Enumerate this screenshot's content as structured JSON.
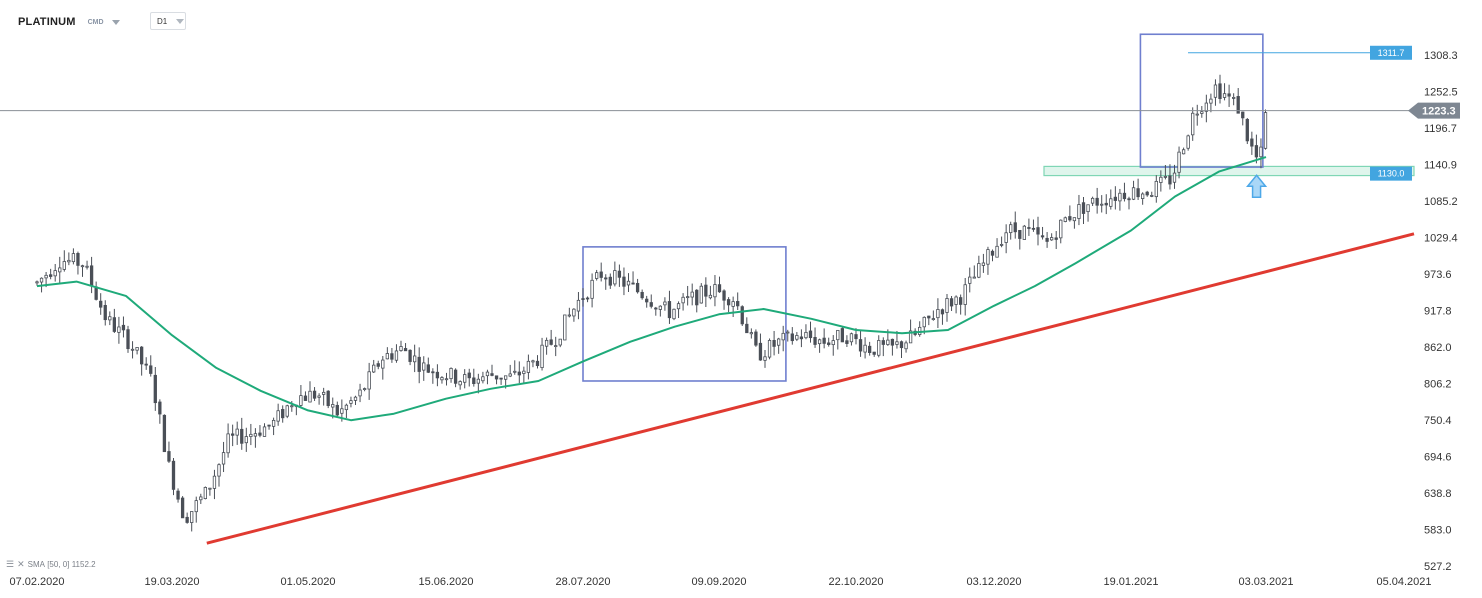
{
  "header": {
    "symbol": "PLATINUM",
    "symbol_type": "CMD",
    "timeframe": "D1"
  },
  "legend": {
    "menu_icon": "menu-icon",
    "close_icon": "close-icon",
    "indicator_name": "SMA",
    "indicator_params": "[50, 0]",
    "indicator_value": "1152.2"
  },
  "chart_data": {
    "type": "candlestick",
    "title": "PLATINUM",
    "timeframe": "D1",
    "y_ticks": [
      "1308.3",
      "1252.5",
      "1196.7",
      "1140.9",
      "1085.2",
      "1029.4",
      "973.6",
      "917.8",
      "862.0",
      "806.2",
      "750.4",
      "694.6",
      "638.8",
      "583.0",
      "527.2"
    ],
    "x_ticks": [
      "07.02.2020",
      "19.03.2020",
      "01.05.2020",
      "15.06.2020",
      "28.07.2020",
      "09.09.2020",
      "22.10.2020",
      "03.12.2020",
      "19.01.2021",
      "03.03.2021",
      "05.04.2021"
    ],
    "ylim": [
      527.2,
      1308.3
    ],
    "current_price": "1223.3",
    "price_labels": [
      {
        "text": "1311.7",
        "value": 1311.7,
        "color": "#42a5e0"
      },
      {
        "text": "1130.0",
        "value": 1130.0,
        "color": "#42a5e0"
      }
    ],
    "candle_colors": {
      "up": "#ffffff",
      "down": "#4a4f57",
      "outline": "#4a4f57"
    },
    "sma": {
      "name": "SMA [50, 0]",
      "color": "#1faa7a",
      "last_value": 1152.2,
      "points": [
        [
          "07.02.2020",
          955
        ],
        [
          "19.02.2020",
          962
        ],
        [
          "05.03.2020",
          940
        ],
        [
          "19.03.2020",
          880
        ],
        [
          "02.04.2020",
          830
        ],
        [
          "16.04.2020",
          795
        ],
        [
          "01.05.2020",
          765
        ],
        [
          "15.05.2020",
          750
        ],
        [
          "29.05.2020",
          760
        ],
        [
          "15.06.2020",
          783
        ],
        [
          "29.06.2020",
          798
        ],
        [
          "14.07.2020",
          810
        ],
        [
          "28.07.2020",
          840
        ],
        [
          "12.08.2020",
          870
        ],
        [
          "26.08.2020",
          893
        ],
        [
          "09.09.2020",
          912
        ],
        [
          "23.09.2020",
          920
        ],
        [
          "08.10.2020",
          905
        ],
        [
          "22.10.2020",
          888
        ],
        [
          "05.11.2020",
          883
        ],
        [
          "19.11.2020",
          888
        ],
        [
          "03.12.2020",
          925
        ],
        [
          "17.12.2020",
          955
        ],
        [
          "31.12.2020",
          990
        ],
        [
          "19.01.2021",
          1040
        ],
        [
          "02.02.2021",
          1092
        ],
        [
          "16.02.2021",
          1130
        ],
        [
          "03.03.2021",
          1152.2
        ]
      ]
    },
    "support_trendline": {
      "color": "#e03a31",
      "from": [
        "30.03.2020",
        562
      ],
      "to": [
        "05.04.2021",
        1035
      ]
    },
    "support_zone": {
      "low": 1124,
      "high": 1138,
      "color": "#7fd6b5"
    },
    "rectangles": [
      {
        "from": "28.07.2020",
        "to": "30.09.2020",
        "low": 810,
        "high": 1015,
        "color": "#6f7fcf"
      },
      {
        "from": "22.01.2021",
        "to": "02.03.2021",
        "low": 1137,
        "high": 1340,
        "color": "#6f7fcf"
      }
    ],
    "arrow": {
      "date": "28.02.2021",
      "price": 1100,
      "direction": "up",
      "color": "#4da8e8"
    }
  }
}
